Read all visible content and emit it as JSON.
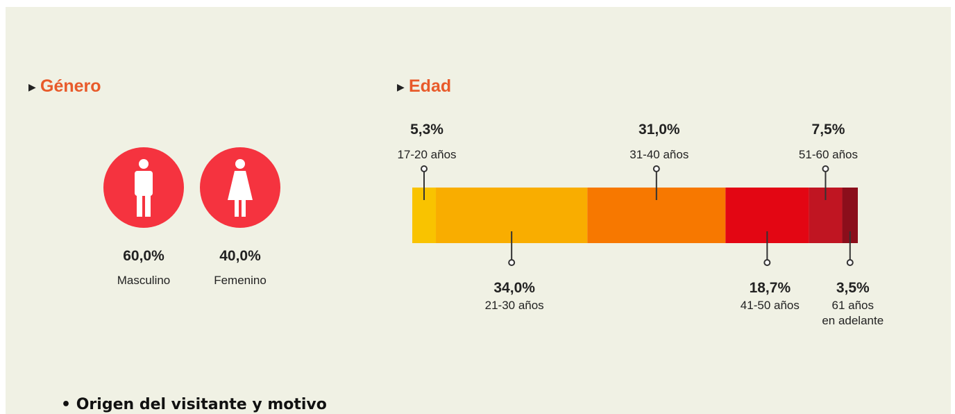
{
  "genero": {
    "title": "Género",
    "categories": [
      "Masculino",
      "Femenino"
    ],
    "values": [
      60,
      40
    ],
    "value_labels": [
      "60,0%",
      "40,0%"
    ]
  },
  "edad": {
    "type": "bar",
    "title": "Edad",
    "categories": [
      "17-20 años",
      "21-30 años",
      "31-40 años",
      "41-50 años",
      "51-60 años",
      "61 años\nen adelante"
    ],
    "values": [
      5.3,
      34,
      31,
      18.7,
      7.5,
      3.5
    ],
    "value_labels": [
      "5,3%",
      "34,0%",
      "31,0%",
      "18,7%",
      "7,5%",
      "3,5%"
    ],
    "colors": [
      "#f9c300",
      "#f9ad00",
      "#f77800",
      "#e30613",
      "#c01522",
      "#8b0e1b"
    ]
  },
  "bullet": "Origen del visitante y motivo"
}
